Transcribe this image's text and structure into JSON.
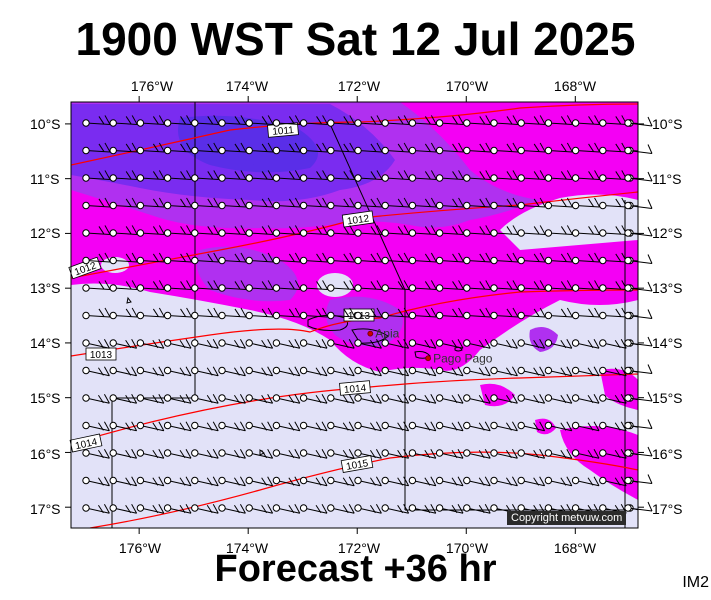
{
  "title": "1900 WST Sat 12 Jul 2025",
  "footer": "Forecast +36 hr",
  "tag": "IM2",
  "copyright": "Copyright metvuw.com",
  "lon_labels": [
    "176°W",
    "174°W",
    "172°W",
    "170°W",
    "168°W"
  ],
  "lat_labels": [
    "10°S",
    "11°S",
    "12°S",
    "13°S",
    "14°S",
    "15°S",
    "16°S",
    "17°S"
  ],
  "places": [
    {
      "name": "Apia",
      "lon": -171.76,
      "lat": -13.83
    },
    {
      "name": "Pago Pago",
      "lon": -170.7,
      "lat": -14.28
    }
  ],
  "isobars": [
    {
      "label": "1011"
    },
    {
      "label": "1012"
    },
    {
      "label": "1012"
    },
    {
      "label": "1013"
    },
    {
      "label": "1013"
    },
    {
      "label": "1014"
    },
    {
      "label": "1014"
    },
    {
      "label": "1015"
    }
  ],
  "colors": {
    "background": "#e2e2f8",
    "precip_light": "#f400f4",
    "precip_medium": "#b030f0",
    "precip_heavy": "#7a2cf0",
    "precip_max": "#5a2ee8",
    "isobar": "#ff0000",
    "wind_barb": "#000000"
  },
  "wind": {
    "direction": "east-southeast",
    "barb_style": "single-flag"
  }
}
